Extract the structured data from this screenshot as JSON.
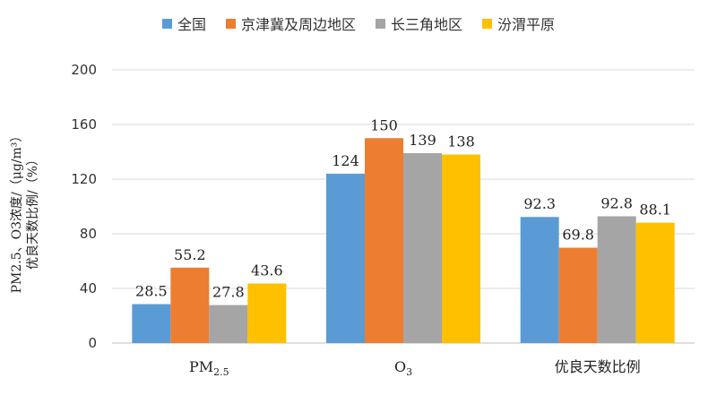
{
  "chart_data": {
    "type": "bar",
    "categories": [
      "PM2.5",
      "O3",
      "优良天数比例"
    ],
    "series": [
      {
        "name": "全国",
        "color": "#5b9bd5",
        "values": [
          28.5,
          124,
          92.3
        ]
      },
      {
        "name": "京津冀及周边地区",
        "color": "#ed7d31",
        "values": [
          55.2,
          150,
          69.8
        ]
      },
      {
        "name": "长三角地区",
        "color": "#a5a5a5",
        "values": [
          27.8,
          139,
          92.8
        ]
      },
      {
        "name": "汾渭平原",
        "color": "#ffc000",
        "values": [
          43.6,
          138,
          88.1
        ]
      }
    ],
    "ylim": [
      0,
      200
    ],
    "yticks": [
      0,
      40,
      80,
      120,
      160,
      200
    ],
    "ylabel_line1": "PM2.5、O3浓度/（μg/m³）",
    "ylabel_line2": "优良天数比例/（%）",
    "grid": true,
    "legend": "top"
  }
}
